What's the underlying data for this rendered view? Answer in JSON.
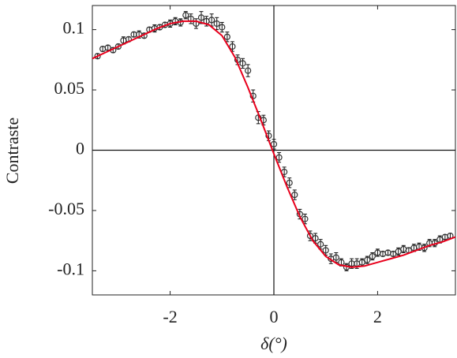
{
  "chart_data": {
    "type": "scatter",
    "xlabel": "δ(°)",
    "ylabel": "Contraste",
    "xlim": [
      -3.5,
      3.5
    ],
    "ylim": [
      -0.12,
      0.12
    ],
    "xticks": [
      -2,
      0,
      2
    ],
    "yticks": [
      -0.1,
      -0.05,
      0,
      0.05,
      0.1
    ],
    "crosshair": true,
    "points": {
      "color": "#333333",
      "x": [
        -3.4,
        -3.3,
        -3.2,
        -3.1,
        -3.0,
        -2.9,
        -2.8,
        -2.7,
        -2.6,
        -2.5,
        -2.4,
        -2.3,
        -2.2,
        -2.1,
        -2.0,
        -1.9,
        -1.8,
        -1.7,
        -1.6,
        -1.5,
        -1.4,
        -1.3,
        -1.2,
        -1.1,
        -1.0,
        -0.9,
        -0.8,
        -0.7,
        -0.6,
        -0.5,
        -0.4,
        -0.3,
        -0.2,
        -0.1,
        0.0,
        0.1,
        0.2,
        0.3,
        0.4,
        0.5,
        0.6,
        0.7,
        0.8,
        0.9,
        1.0,
        1.1,
        1.2,
        1.3,
        1.4,
        1.5,
        1.6,
        1.7,
        1.8,
        1.9,
        2.0,
        2.1,
        2.2,
        2.3,
        2.4,
        2.5,
        2.6,
        2.7,
        2.8,
        2.9,
        3.0,
        3.1,
        3.2,
        3.3,
        3.4
      ],
      "values": [
        0.078,
        0.084,
        0.085,
        0.083,
        0.086,
        0.091,
        0.092,
        0.096,
        0.096,
        0.095,
        0.1,
        0.101,
        0.102,
        0.104,
        0.105,
        0.107,
        0.106,
        0.112,
        0.109,
        0.105,
        0.11,
        0.107,
        0.108,
        0.105,
        0.102,
        0.094,
        0.086,
        0.075,
        0.072,
        0.066,
        0.045,
        0.027,
        0.025,
        0.012,
        0.005,
        -0.006,
        -0.018,
        -0.027,
        -0.037,
        -0.053,
        -0.057,
        -0.071,
        -0.073,
        -0.078,
        -0.083,
        -0.09,
        -0.089,
        -0.093,
        -0.097,
        -0.094,
        -0.094,
        -0.093,
        -0.091,
        -0.088,
        -0.085,
        -0.086,
        -0.085,
        -0.086,
        -0.084,
        -0.082,
        -0.083,
        -0.081,
        -0.08,
        -0.081,
        -0.077,
        -0.077,
        -0.074,
        -0.072,
        -0.071
      ],
      "errors": [
        0.002,
        0.002,
        0.002,
        0.002,
        0.002,
        0.003,
        0.002,
        0.002,
        0.003,
        0.002,
        0.002,
        0.003,
        0.002,
        0.002,
        0.003,
        0.003,
        0.003,
        0.003,
        0.004,
        0.004,
        0.005,
        0.004,
        0.005,
        0.005,
        0.004,
        0.004,
        0.004,
        0.004,
        0.004,
        0.005,
        0.005,
        0.005,
        0.004,
        0.004,
        0.004,
        0.004,
        0.004,
        0.004,
        0.004,
        0.004,
        0.004,
        0.004,
        0.004,
        0.004,
        0.004,
        0.004,
        0.004,
        0.003,
        0.003,
        0.004,
        0.004,
        0.003,
        0.003,
        0.003,
        0.003,
        0.002,
        0.002,
        0.002,
        0.003,
        0.003,
        0.002,
        0.003,
        0.003,
        0.003,
        0.003,
        0.003,
        0.003,
        0.002,
        0.002
      ]
    },
    "fit": {
      "color": "#e8001c",
      "x": [
        -3.5,
        -3.25,
        -3.0,
        -2.75,
        -2.5,
        -2.25,
        -2.0,
        -1.75,
        -1.5,
        -1.25,
        -1.0,
        -0.75,
        -0.5,
        -0.25,
        0,
        0.25,
        0.5,
        0.75,
        1.0,
        1.25,
        1.5,
        1.75,
        2.0,
        2.25,
        2.5,
        2.75,
        3.0,
        3.25,
        3.5
      ],
      "values": [
        0.076,
        0.081,
        0.086,
        0.091,
        0.096,
        0.101,
        0.105,
        0.107,
        0.107,
        0.104,
        0.095,
        0.077,
        0.052,
        0.025,
        -0.003,
        -0.03,
        -0.055,
        -0.075,
        -0.088,
        -0.095,
        -0.097,
        -0.096,
        -0.093,
        -0.09,
        -0.087,
        -0.083,
        -0.079,
        -0.076,
        -0.072
      ]
    }
  }
}
